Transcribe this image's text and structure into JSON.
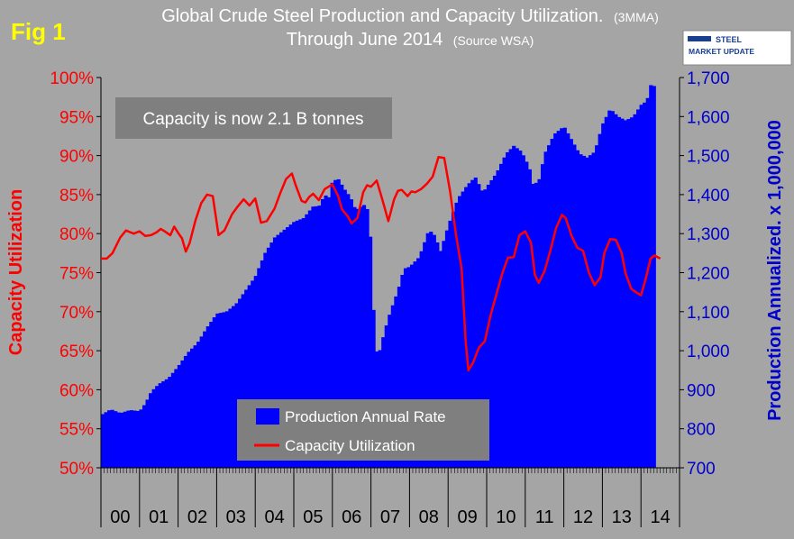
{
  "colors": {
    "background": "#a5a5a5",
    "bars": "#0000ff",
    "line": "#ff0000",
    "left_axis": "#ff0000",
    "right_axis": "#0000cc",
    "fig_label": "#ffff00",
    "title": "#ffffff",
    "annotation_box": "#7f7f7f",
    "legend_box": "#7f7f7f"
  },
  "fig_label": "Fig 1",
  "logo": {
    "line1": "STEEL",
    "line2": "MARKET UPDATE"
  },
  "chart_data": {
    "type": "bar+line",
    "title_line1": "Global Crude Steel Production and Capacity Utilization.",
    "title_line1_note": "(3MMA)",
    "title_line2": "Through June 2014",
    "title_line2_note": "(Source WSA)",
    "annotation": "Capacity is now 2.1 B tonnes",
    "left_axis": {
      "label": "Capacity Utilization",
      "min": 50,
      "max": 100,
      "step": 5,
      "ticks": [
        "50%",
        "55%",
        "60%",
        "65%",
        "70%",
        "75%",
        "80%",
        "85%",
        "90%",
        "95%",
        "100%"
      ]
    },
    "right_axis": {
      "label": "Production Annualized. x 1,000,000",
      "min": 700,
      "max": 1700,
      "step": 100,
      "ticks": [
        "700",
        "800",
        "900",
        "1,000",
        "1,100",
        "1,200",
        "1,300",
        "1,400",
        "1,500",
        "1,600",
        "1,700"
      ]
    },
    "x_categories": [
      "00",
      "01",
      "02",
      "03",
      "04",
      "05",
      "06",
      "07",
      "08",
      "09",
      "10",
      "11",
      "12",
      "13",
      "14"
    ],
    "legend": [
      "Production Annual Rate",
      "Capacity Utilization"
    ],
    "series": [
      {
        "name": "Production Annual Rate",
        "type": "bar",
        "axis": "right",
        "points": [
          [
            0,
            835
          ],
          [
            0.5,
            850
          ],
          [
            1,
            840
          ],
          [
            1.5,
            848
          ],
          [
            2,
            845
          ],
          [
            2.3,
            865
          ],
          [
            2.6,
            895
          ],
          [
            3,
            915
          ],
          [
            3.5,
            930
          ],
          [
            4,
            960
          ],
          [
            4.5,
            995
          ],
          [
            5,
            1020
          ],
          [
            5.5,
            1060
          ],
          [
            6,
            1095
          ],
          [
            6.5,
            1100
          ],
          [
            7,
            1120
          ],
          [
            7.5,
            1155
          ],
          [
            8,
            1190
          ],
          [
            8.5,
            1250
          ],
          [
            9,
            1290
          ],
          [
            9.5,
            1310
          ],
          [
            10,
            1330
          ],
          [
            10.5,
            1340
          ],
          [
            11,
            1370
          ],
          [
            11.3,
            1370
          ],
          [
            11.6,
            1400
          ],
          [
            11.8,
            1390
          ],
          [
            12,
            1435
          ],
          [
            12.3,
            1440
          ],
          [
            12.6,
            1415
          ],
          [
            12.9,
            1395
          ],
          [
            13,
            1385
          ],
          [
            13.2,
            1360
          ],
          [
            13.5,
            1370
          ],
          [
            13.7,
            1375
          ],
          [
            13.9,
            1350
          ],
          [
            14.05,
            1210
          ],
          [
            14.2,
            1005
          ],
          [
            14.4,
            990
          ],
          [
            14.7,
            1050
          ],
          [
            15,
            1100
          ],
          [
            15.4,
            1155
          ],
          [
            15.7,
            1210
          ],
          [
            16,
            1215
          ],
          [
            16.5,
            1240
          ],
          [
            17,
            1310
          ],
          [
            17.3,
            1295
          ],
          [
            17.6,
            1255
          ],
          [
            18,
            1320
          ],
          [
            18.5,
            1390
          ],
          [
            19,
            1425
          ],
          [
            19.4,
            1445
          ],
          [
            19.8,
            1405
          ],
          [
            20,
            1420
          ],
          [
            20.5,
            1455
          ],
          [
            21,
            1505
          ],
          [
            21.4,
            1525
          ],
          [
            21.8,
            1510
          ],
          [
            22.2,
            1470
          ],
          [
            22.4,
            1425
          ],
          [
            22.7,
            1435
          ],
          [
            23,
            1505
          ],
          [
            23.5,
            1555
          ],
          [
            24,
            1575
          ],
          [
            24.4,
            1540
          ],
          [
            24.8,
            1505
          ],
          [
            25.2,
            1495
          ],
          [
            25.6,
            1510
          ],
          [
            26,
            1580
          ],
          [
            26.4,
            1620
          ],
          [
            26.8,
            1600
          ],
          [
            27.2,
            1590
          ],
          [
            27.6,
            1600
          ],
          [
            28,
            1630
          ],
          [
            28.3,
            1640
          ],
          [
            28.55,
            1690
          ],
          [
            28.75,
            1670
          ]
        ]
      },
      {
        "name": "Capacity Utilization",
        "type": "line",
        "axis": "left",
        "points": [
          [
            0,
            76.8
          ],
          [
            0.3,
            76.8
          ],
          [
            0.6,
            77.5
          ],
          [
            1,
            79.5
          ],
          [
            1.3,
            80.4
          ],
          [
            1.5,
            80.2
          ],
          [
            1.7,
            80.0
          ],
          [
            2,
            80.3
          ],
          [
            2.3,
            79.7
          ],
          [
            2.6,
            79.8
          ],
          [
            2.9,
            80.2
          ],
          [
            3.1,
            80.6
          ],
          [
            3.3,
            80.3
          ],
          [
            3.6,
            79.8
          ],
          [
            3.8,
            80.9
          ],
          [
            4,
            80.1
          ],
          [
            4.2,
            79.4
          ],
          [
            4.4,
            77.7
          ],
          [
            4.6,
            78.8
          ],
          [
            4.9,
            81.7
          ],
          [
            5.2,
            83.9
          ],
          [
            5.5,
            85.0
          ],
          [
            5.8,
            84.8
          ],
          [
            6.1,
            79.8
          ],
          [
            6.4,
            80.4
          ],
          [
            6.8,
            82.5
          ],
          [
            7.1,
            83.5
          ],
          [
            7.4,
            84.4
          ],
          [
            7.7,
            83.6
          ],
          [
            8,
            84.5
          ],
          [
            8.3,
            81.4
          ],
          [
            8.6,
            81.6
          ],
          [
            9,
            83.2
          ],
          [
            9.3,
            85.2
          ],
          [
            9.6,
            87.0
          ],
          [
            9.9,
            87.7
          ],
          [
            10.1,
            86.2
          ],
          [
            10.4,
            84.2
          ],
          [
            10.6,
            84.0
          ],
          [
            10.8,
            84.7
          ],
          [
            11,
            85.1
          ],
          [
            11.3,
            84.3
          ],
          [
            11.6,
            85.7
          ],
          [
            12,
            86.3
          ],
          [
            12.3,
            84.8
          ],
          [
            12.5,
            83.1
          ],
          [
            12.8,
            82.2
          ],
          [
            13,
            81.3
          ],
          [
            13.3,
            82.0
          ],
          [
            13.6,
            85.3
          ],
          [
            13.8,
            86.2
          ],
          [
            14,
            86.0
          ],
          [
            14.3,
            86.8
          ],
          [
            14.6,
            84.3
          ],
          [
            14.9,
            81.6
          ],
          [
            15.2,
            84.4
          ],
          [
            15.4,
            85.5
          ],
          [
            15.6,
            85.6
          ],
          [
            15.9,
            84.8
          ],
          [
            16.1,
            85.4
          ],
          [
            16.3,
            85.3
          ],
          [
            16.6,
            85.7
          ],
          [
            16.9,
            86.4
          ],
          [
            17.2,
            87.3
          ],
          [
            17.5,
            89.8
          ],
          [
            17.8,
            89.7
          ],
          [
            18.1,
            85.5
          ],
          [
            18.4,
            80.0
          ],
          [
            18.7,
            75.5
          ],
          [
            18.9,
            66.5
          ],
          [
            19.05,
            62.5
          ],
          [
            19.3,
            63.5
          ],
          [
            19.6,
            65.4
          ],
          [
            19.9,
            66.2
          ],
          [
            20.2,
            69.5
          ],
          [
            20.5,
            72.2
          ],
          [
            20.8,
            74.8
          ],
          [
            21.1,
            76.9
          ],
          [
            21.4,
            77.0
          ],
          [
            21.7,
            79.8
          ],
          [
            22,
            80.3
          ],
          [
            22.3,
            78.8
          ],
          [
            22.5,
            74.7
          ],
          [
            22.7,
            73.7
          ],
          [
            23,
            75.2
          ],
          [
            23.3,
            77.8
          ],
          [
            23.6,
            80.7
          ],
          [
            23.9,
            82.4
          ],
          [
            24.1,
            82.0
          ],
          [
            24.4,
            79.7
          ],
          [
            24.7,
            78.2
          ],
          [
            25,
            77.8
          ],
          [
            25.3,
            75.0
          ],
          [
            25.6,
            73.4
          ],
          [
            25.9,
            74.4
          ],
          [
            26.1,
            77.5
          ],
          [
            26.4,
            79.3
          ],
          [
            26.7,
            79.2
          ],
          [
            27,
            77.5
          ],
          [
            27.2,
            74.9
          ],
          [
            27.5,
            72.9
          ],
          [
            27.8,
            72.4
          ],
          [
            28,
            72.1
          ],
          [
            28.2,
            73.8
          ],
          [
            28.5,
            76.8
          ],
          [
            28.7,
            77.2
          ],
          [
            29,
            76.8
          ]
        ]
      }
    ]
  }
}
